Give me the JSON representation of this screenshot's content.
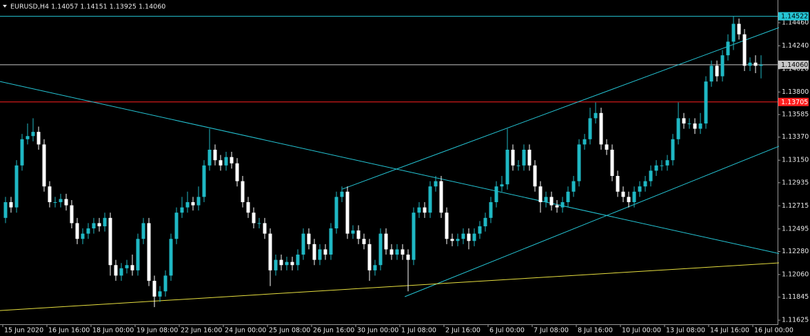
{
  "chart_data": {
    "type": "candlestick",
    "title": "EURUSD,H4  1.14057 1.14151 1.13925 1.14060",
    "categories": [
      "15 Jun 2020",
      null,
      null,
      null,
      null,
      null,
      null,
      null,
      "16 Jun 16:00",
      null,
      null,
      null,
      null,
      null,
      null,
      null,
      "18 Jun 00:00",
      null,
      null,
      null,
      null,
      null,
      null,
      null,
      "19 Jun 08:00",
      null,
      null,
      null,
      null,
      null,
      null,
      null,
      "22 Jun 16:00",
      null,
      null,
      null,
      null,
      null,
      null,
      null,
      "24 Jun 00:00",
      null,
      null,
      null,
      null,
      null,
      null,
      null,
      "25 Jun 08:00",
      null,
      null,
      null,
      null,
      null,
      null,
      null,
      "26 Jun 16:00",
      null,
      null,
      null,
      null,
      null,
      null,
      null,
      "30 Jun 00:00",
      null,
      null,
      null,
      null,
      null,
      null,
      null,
      "1 Jul 08:00",
      null,
      null,
      null,
      null,
      null,
      null,
      null,
      "2 Jul 16:00",
      null,
      null,
      null,
      null,
      null,
      null,
      null,
      "6 Jul 00:00",
      null,
      null,
      null,
      null,
      null,
      null,
      null,
      "7 Jul 08:00",
      null,
      null,
      null,
      null,
      null,
      null,
      null,
      "8 Jul 16:00",
      null,
      null,
      null,
      null,
      null,
      null,
      null,
      "10 Jul 00:00",
      null,
      null,
      null,
      null,
      null,
      null,
      null,
      "13 Jul 08:00",
      null,
      null,
      null,
      null,
      null,
      null,
      null,
      "14 Jul 16:00",
      null,
      null,
      null,
      null,
      null,
      null,
      null,
      "16 Jul 00:00",
      null
    ],
    "open": [
      1.126,
      1.1275,
      1.127,
      1.131,
      1.1335,
      1.1338,
      1.1342,
      1.133,
      1.129,
      1.1275,
      1.1275,
      1.1278,
      1.1272,
      1.1255,
      1.124,
      1.1245,
      1.125,
      1.1255,
      1.1252,
      1.126,
      1.1215,
      1.1205,
      1.1212,
      1.1215,
      1.121,
      1.124,
      1.1255,
      1.12,
      1.1185,
      1.119,
      1.1205,
      1.124,
      1.1265,
      1.127,
      1.1275,
      1.1272,
      1.128,
      1.131,
      1.1325,
      1.1315,
      1.131,
      1.1318,
      1.1312,
      1.1295,
      1.1275,
      1.1265,
      1.1255,
      1.1255,
      1.1245,
      1.121,
      1.122,
      1.1215,
      1.1218,
      1.1215,
      1.1225,
      1.1245,
      1.1235,
      1.122,
      1.123,
      1.1225,
      1.125,
      1.128,
      1.1285,
      1.1245,
      1.1248,
      1.124,
      1.1235,
      1.121,
      1.1215,
      1.1245,
      1.123,
      1.1225,
      1.123,
      1.1225,
      1.122,
      1.1265,
      1.127,
      1.1265,
      1.129,
      1.1295,
      1.1265,
      1.124,
      1.1238,
      1.124,
      1.1245,
      1.1238,
      1.1245,
      1.1252,
      1.126,
      1.1275,
      1.129,
      1.1292,
      1.1325,
      1.131,
      1.131,
      1.1325,
      1.131,
      1.129,
      1.1275,
      1.128,
      1.1272,
      1.127,
      1.1275,
      1.1285,
      1.1295,
      1.133,
      1.1335,
      1.1355,
      1.136,
      1.133,
      1.1325,
      1.13,
      1.1285,
      1.128,
      1.1275,
      1.1285,
      1.129,
      1.1295,
      1.1305,
      1.131,
      1.131,
      1.1315,
      1.1335,
      1.1355,
      1.135,
      1.135,
      1.1345,
      1.135,
      1.139,
      1.1405,
      1.1395,
      1.1415,
      1.1428,
      1.1445,
      1.1435,
      1.1405,
      1.1408,
      1.1405
    ],
    "high": [
      1.128,
      1.128,
      1.1315,
      1.134,
      1.135,
      1.1355,
      1.1347,
      1.1335,
      1.1295,
      1.128,
      1.1283,
      1.1283,
      1.1277,
      1.126,
      1.125,
      1.1255,
      1.126,
      1.126,
      1.1265,
      1.1265,
      1.122,
      1.1217,
      1.122,
      1.1225,
      1.1245,
      1.126,
      1.126,
      1.1205,
      1.1195,
      1.121,
      1.1245,
      1.127,
      1.128,
      1.1285,
      1.128,
      1.129,
      1.1315,
      1.1345,
      1.133,
      1.132,
      1.1323,
      1.1323,
      1.1317,
      1.13,
      1.128,
      1.127,
      1.126,
      1.126,
      1.125,
      1.1225,
      1.1225,
      1.1223,
      1.1223,
      1.123,
      1.125,
      1.125,
      1.124,
      1.1235,
      1.1235,
      1.1255,
      1.1285,
      1.129,
      1.129,
      1.1253,
      1.1253,
      1.1245,
      1.124,
      1.122,
      1.125,
      1.125,
      1.1235,
      1.1235,
      1.1235,
      1.123,
      1.127,
      1.1275,
      1.1275,
      1.1295,
      1.13,
      1.13,
      1.127,
      1.1245,
      1.1245,
      1.125,
      1.125,
      1.125,
      1.1257,
      1.1265,
      1.128,
      1.1295,
      1.13,
      1.1345,
      1.133,
      1.1315,
      1.133,
      1.133,
      1.1315,
      1.1295,
      1.1285,
      1.1285,
      1.1277,
      1.128,
      1.129,
      1.13,
      1.1335,
      1.134,
      1.1365,
      1.137,
      1.1365,
      1.1335,
      1.133,
      1.1305,
      1.129,
      1.1285,
      1.129,
      1.1295,
      1.13,
      1.131,
      1.1315,
      1.1315,
      1.132,
      1.134,
      1.137,
      1.136,
      1.1355,
      1.1355,
      1.136,
      1.1395,
      1.141,
      1.141,
      1.142,
      1.1435,
      1.1452,
      1.145,
      1.144,
      1.1413,
      1.1415,
      1.1415
    ],
    "low": [
      1.1255,
      1.1265,
      1.1265,
      1.1305,
      1.133,
      1.1333,
      1.1325,
      1.1285,
      1.127,
      1.127,
      1.127,
      1.1267,
      1.125,
      1.1235,
      1.1235,
      1.124,
      1.1245,
      1.1247,
      1.1247,
      1.1205,
      1.12,
      1.12,
      1.1207,
      1.1205,
      1.1205,
      1.1235,
      1.1195,
      1.1175,
      1.118,
      1.1185,
      1.12,
      1.1235,
      1.126,
      1.1265,
      1.1267,
      1.1267,
      1.1275,
      1.1305,
      1.131,
      1.1305,
      1.1305,
      1.1307,
      1.129,
      1.127,
      1.126,
      1.125,
      1.125,
      1.124,
      1.1195,
      1.1205,
      1.121,
      1.121,
      1.121,
      1.121,
      1.122,
      1.123,
      1.1215,
      1.1215,
      1.122,
      1.122,
      1.1245,
      1.1275,
      1.124,
      1.124,
      1.1235,
      1.123,
      1.12,
      1.1205,
      1.121,
      1.1225,
      1.122,
      1.122,
      1.122,
      1.119,
      1.1215,
      1.126,
      1.126,
      1.126,
      1.1285,
      1.126,
      1.1235,
      1.1233,
      1.1233,
      1.1235,
      1.123,
      1.1233,
      1.124,
      1.1247,
      1.1255,
      1.127,
      1.1285,
      1.1287,
      1.1305,
      1.1305,
      1.1305,
      1.1305,
      1.1285,
      1.1265,
      1.127,
      1.1267,
      1.1265,
      1.1265,
      1.127,
      1.128,
      1.129,
      1.1325,
      1.133,
      1.135,
      1.1325,
      1.132,
      1.1295,
      1.128,
      1.1275,
      1.127,
      1.127,
      1.128,
      1.1285,
      1.129,
      1.13,
      1.1305,
      1.1305,
      1.131,
      1.133,
      1.1345,
      1.1345,
      1.134,
      1.134,
      1.1345,
      1.1385,
      1.139,
      1.139,
      1.141,
      1.142,
      1.143,
      1.14,
      1.14,
      1.1398,
      1.1393
    ],
    "close": [
      1.1275,
      1.127,
      1.131,
      1.1335,
      1.1338,
      1.1342,
      1.133,
      1.129,
      1.1275,
      1.1275,
      1.1278,
      1.1272,
      1.1255,
      1.124,
      1.1245,
      1.125,
      1.1255,
      1.1252,
      1.126,
      1.1215,
      1.1205,
      1.1212,
      1.1215,
      1.121,
      1.124,
      1.1255,
      1.12,
      1.1185,
      1.119,
      1.1205,
      1.124,
      1.1265,
      1.127,
      1.1275,
      1.1272,
      1.128,
      1.131,
      1.1325,
      1.1315,
      1.131,
      1.1318,
      1.1312,
      1.1295,
      1.1275,
      1.1265,
      1.1255,
      1.1255,
      1.1245,
      1.121,
      1.122,
      1.1215,
      1.1218,
      1.1215,
      1.1225,
      1.1245,
      1.1235,
      1.122,
      1.123,
      1.1225,
      1.125,
      1.128,
      1.1285,
      1.1245,
      1.1248,
      1.124,
      1.1235,
      1.121,
      1.1215,
      1.1245,
      1.123,
      1.1225,
      1.123,
      1.1225,
      1.122,
      1.1265,
      1.127,
      1.1265,
      1.129,
      1.1295,
      1.1265,
      1.124,
      1.1238,
      1.124,
      1.1245,
      1.1238,
      1.1245,
      1.1252,
      1.126,
      1.1275,
      1.129,
      1.1292,
      1.1325,
      1.131,
      1.131,
      1.1325,
      1.131,
      1.129,
      1.1275,
      1.128,
      1.1272,
      1.127,
      1.1275,
      1.1285,
      1.1295,
      1.133,
      1.1335,
      1.1355,
      1.136,
      1.133,
      1.1325,
      1.13,
      1.1285,
      1.128,
      1.1275,
      1.1285,
      1.129,
      1.1295,
      1.1305,
      1.131,
      1.131,
      1.1315,
      1.1335,
      1.1355,
      1.135,
      1.135,
      1.1345,
      1.135,
      1.139,
      1.1405,
      1.1395,
      1.1415,
      1.1428,
      1.1445,
      1.1435,
      1.1405,
      1.1408,
      1.1405,
      1.1406
    ],
    "up_color": "#1fb8c4",
    "down_color": "#ffffff",
    "ylim": [
      1.11586,
      1.14677
    ],
    "yticks": [
      {
        "value": 1.1446,
        "label": "1.14460"
      },
      {
        "value": 1.1424,
        "label": "1.14240"
      },
      {
        "value": 1.1402,
        "label": "1.14020"
      },
      {
        "value": 1.138,
        "label": "1.13800"
      },
      1.13585,
      {
        "value": 1.1337,
        "label": "1.13370"
      },
      {
        "value": 1.1315,
        "label": "1.13150"
      },
      1.12935,
      1.12715,
      1.12495,
      {
        "value": 1.1228,
        "label": "1.12280"
      },
      {
        "value": 1.1206,
        "label": "1.12060"
      },
      1.11845,
      1.11625
    ],
    "hlines": [
      {
        "value": 1.14522,
        "color": "#25c6d6"
      },
      {
        "value": 1.1406,
        "label": "1.14060",
        "color": "#c8c8c8"
      },
      {
        "value": 1.13705,
        "color": "#ff2020"
      }
    ],
    "trendlines": [
      {
        "x": [
          -1,
          140.25
        ],
        "y": [
          1.139,
          1.1226
        ],
        "color": "#25c6d6"
      },
      {
        "x": [
          61.1,
          140.25
        ],
        "y": [
          1.12875,
          1.14414
        ],
        "color": "#25c6d6"
      },
      {
        "x": [
          72.4,
          140.25
        ],
        "y": [
          1.11849,
          1.13283
        ],
        "color": "#25c6d6"
      },
      {
        "x": [
          -1,
          140.25
        ],
        "y": [
          1.11717,
          1.12171
        ],
        "color": "#e8e040"
      }
    ]
  }
}
